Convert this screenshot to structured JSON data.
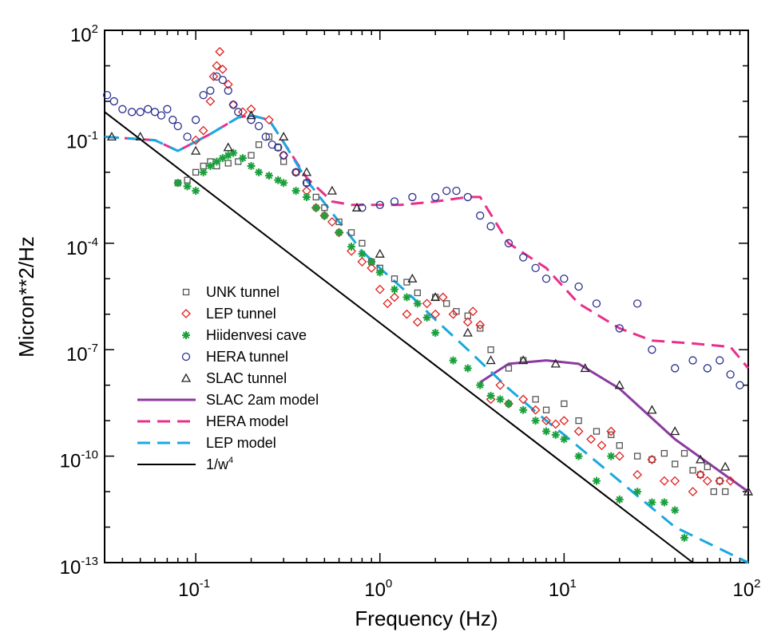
{
  "chart_data": {
    "type": "scatter",
    "xlabel": "Frequency  (Hz)",
    "ylabel": "Micron**2/Hz",
    "x_scale": "log",
    "y_scale": "log",
    "xlim": [
      0.032,
      100
    ],
    "ylim": [
      1e-13,
      100
    ],
    "x_ticks": [
      {
        "base": "10",
        "exp": "-1",
        "value": 0.1
      },
      {
        "base": "10",
        "exp": "0",
        "value": 1
      },
      {
        "base": "10",
        "exp": "1",
        "value": 10
      },
      {
        "base": "10",
        "exp": "2",
        "value": 100
      }
    ],
    "y_ticks": [
      {
        "base": "10",
        "exp": "2",
        "value": 100
      },
      {
        "base": "10",
        "exp": "-1",
        "value": 0.1
      },
      {
        "base": "10",
        "exp": "-4",
        "value": 0.0001
      },
      {
        "base": "10",
        "exp": "-7",
        "value": 1e-07
      },
      {
        "base": "10",
        "exp": "-10",
        "value": 1e-10
      },
      {
        "base": "10",
        "exp": "-13",
        "value": 1e-13
      }
    ],
    "grid": false,
    "legend_position": "lower-left",
    "legend": [
      {
        "label": "UNK tunnel",
        "type": "marker",
        "marker": "square",
        "color": "#555555"
      },
      {
        "label": "LEP tunnel",
        "type": "marker",
        "marker": "diamond",
        "color": "#e0201e"
      },
      {
        "label": "Hiidenvesi cave",
        "type": "marker",
        "marker": "star",
        "color": "#1aa03c"
      },
      {
        "label": "HERA tunnel",
        "type": "marker",
        "marker": "circle",
        "color": "#2a3090"
      },
      {
        "label": "SLAC tunnel",
        "type": "marker",
        "marker": "triangle",
        "color": "#222222"
      },
      {
        "label": "SLAC 2am model",
        "type": "line",
        "style": "solid",
        "color": "#8b3aa0"
      },
      {
        "label": "HERA model",
        "type": "line",
        "style": "dashed",
        "color": "#e8308a"
      },
      {
        "label": "LEP model",
        "type": "line",
        "style": "dashed",
        "color": "#19a8e0"
      },
      {
        "label": "1/w",
        "label_sup": "4",
        "type": "line",
        "style": "solid",
        "color": "#000000"
      }
    ],
    "lines": [
      {
        "name": "SLAC 2am model",
        "color": "#8b3aa0",
        "dash": "",
        "width": 3,
        "x": [
          3.5,
          5,
          8,
          12,
          20,
          40,
          100
        ],
        "y": [
          1.2e-08,
          4e-08,
          5e-08,
          4e-08,
          8e-09,
          3e-10,
          1e-11
        ]
      },
      {
        "name": "HERA model",
        "color": "#e8308a",
        "dash": "16 9",
        "width": 3,
        "x": [
          0.03,
          0.06,
          0.08,
          0.12,
          0.17,
          0.2,
          0.25,
          0.3,
          0.4,
          0.55,
          0.7,
          0.85,
          1.3,
          2,
          3,
          3.5,
          5,
          8,
          12,
          20,
          30,
          50,
          80,
          100
        ],
        "y": [
          0.1,
          0.08,
          0.04,
          0.12,
          0.35,
          0.4,
          0.3,
          0.07,
          0.007,
          0.0015,
          0.0012,
          0.0012,
          0.0012,
          0.0015,
          0.002,
          0.002,
          0.0001,
          2e-05,
          2e-06,
          4e-07,
          1.8e-07,
          1.5e-07,
          1.2e-07,
          3e-08
        ]
      },
      {
        "name": "LEP model",
        "color": "#19a8e0",
        "dash": "18 10",
        "width": 3,
        "x": [
          0.03,
          0.06,
          0.08,
          0.12,
          0.17,
          0.2,
          0.25,
          0.3,
          0.4,
          0.6,
          0.8,
          1,
          1.5,
          2,
          3,
          5,
          8,
          10,
          20,
          40,
          100
        ],
        "y": [
          0.1,
          0.08,
          0.04,
          0.12,
          0.35,
          0.4,
          0.3,
          0.07,
          0.006,
          0.0004,
          6e-05,
          2e-05,
          3e-06,
          7e-07,
          1e-07,
          8e-09,
          1e-09,
          4e-10,
          2e-11,
          1e-12,
          1e-13
        ]
      },
      {
        "name": "1/w^4",
        "color": "#000000",
        "dash": "",
        "width": 2,
        "x": [
          0.032,
          50
        ],
        "y": [
          0.5,
          1e-13
        ]
      }
    ],
    "series": [
      {
        "name": "UNK tunnel",
        "marker": "square",
        "color": "#555555",
        "x": [
          0.08,
          0.09,
          0.1,
          0.11,
          0.12,
          0.13,
          0.15,
          0.17,
          0.2,
          0.22,
          0.25,
          0.28,
          0.3,
          0.35,
          0.4,
          0.45,
          0.5,
          0.6,
          0.7,
          0.8,
          0.9,
          1,
          1.2,
          1.4,
          1.6,
          2,
          2.3,
          2.6,
          3,
          3.5,
          4,
          5,
          6,
          7,
          8,
          10,
          12,
          15,
          18,
          20,
          25,
          30,
          35,
          40,
          45,
          50,
          55,
          60,
          65,
          70,
          75
        ],
        "y": [
          0.005,
          0.006,
          0.01,
          0.015,
          0.02,
          0.015,
          0.018,
          0.02,
          0.03,
          0.06,
          0.1,
          0.05,
          0.02,
          0.01,
          0.005,
          0.002,
          0.001,
          0.0004,
          0.0002,
          0.0001,
          3e-05,
          2e-05,
          1e-05,
          8e-06,
          4e-06,
          3e-06,
          2e-06,
          1.2e-06,
          9e-07,
          4e-07,
          1e-07,
          3e-08,
          5e-08,
          4e-09,
          2e-09,
          3e-09,
          1e-09,
          5e-10,
          4e-10,
          2e-10,
          1e-10,
          8e-11,
          1.2e-10,
          6e-11,
          1.2e-10,
          4e-11,
          3e-11,
          5e-11,
          1e-11,
          2e-11,
          1e-11
        ]
      },
      {
        "name": "LEP tunnel",
        "marker": "diamond",
        "color": "#e0201e",
        "x": [
          0.1,
          0.11,
          0.12,
          0.125,
          0.13,
          0.135,
          0.14,
          0.15,
          0.16,
          0.18,
          0.2,
          0.25,
          0.3,
          0.35,
          0.4,
          0.45,
          0.5,
          0.55,
          0.6,
          0.7,
          0.8,
          0.9,
          1,
          1.1,
          1.2,
          1.4,
          1.6,
          1.8,
          2,
          2.2,
          2.5,
          3,
          3.2,
          3.5,
          4,
          4.5,
          5,
          6,
          7,
          8,
          9,
          10,
          12,
          14,
          16,
          18,
          20,
          25,
          30,
          35,
          40,
          50,
          55,
          60,
          70,
          80
        ],
        "y": [
          0.08,
          0.15,
          1,
          5,
          10,
          25,
          8,
          3,
          0.8,
          0.5,
          0.6,
          0.3,
          0.03,
          0.01,
          0.003,
          0.001,
          0.0006,
          0.0004,
          0.0002,
          6e-05,
          3e-05,
          2e-05,
          5e-06,
          2e-06,
          3e-06,
          1e-06,
          6e-07,
          2e-06,
          1e-06,
          3e-06,
          1e-06,
          6e-07,
          1.2e-06,
          5e-07,
          4e-09,
          1e-08,
          3e-09,
          4e-09,
          2e-09,
          1e-09,
          8e-10,
          1e-09,
          5e-10,
          3e-10,
          2e-10,
          5e-10,
          1e-10,
          3e-11,
          8e-11,
          2e-11,
          2e-11,
          1e-11,
          3e-11,
          2e-11,
          2e-11,
          2e-11
        ]
      },
      {
        "name": "Hiidenvesi cave",
        "marker": "star",
        "color": "#1aa03c",
        "x": [
          0.08,
          0.09,
          0.1,
          0.11,
          0.12,
          0.13,
          0.14,
          0.15,
          0.16,
          0.18,
          0.2,
          0.22,
          0.25,
          0.28,
          0.3,
          0.35,
          0.4,
          0.45,
          0.5,
          0.6,
          0.7,
          0.8,
          0.9,
          1,
          1.2,
          1.4,
          1.6,
          1.8,
          2,
          2.5,
          3,
          3.5,
          4,
          4.5,
          5,
          6,
          7,
          8,
          9,
          10,
          12,
          15,
          18,
          20,
          25,
          30,
          35,
          40,
          45
        ],
        "y": [
          0.005,
          0.004,
          0.003,
          0.01,
          0.015,
          0.02,
          0.025,
          0.03,
          0.035,
          0.025,
          0.015,
          0.01,
          0.008,
          0.006,
          0.005,
          0.003,
          0.002,
          0.001,
          0.0006,
          0.0002,
          8e-05,
          5e-05,
          3e-05,
          1.5e-05,
          5e-06,
          3e-06,
          2e-06,
          8e-07,
          3e-07,
          5e-08,
          3e-08,
          1e-08,
          5e-09,
          4e-09,
          3e-09,
          2e-09,
          1e-09,
          5e-10,
          4e-10,
          3e-10,
          1e-10,
          2e-11,
          1e-10,
          6e-12,
          1e-11,
          5e-12,
          5e-12,
          3e-12,
          5e-13
        ]
      },
      {
        "name": "HERA tunnel",
        "marker": "circle",
        "color": "#2a3090",
        "x": [
          0.033,
          0.036,
          0.04,
          0.045,
          0.05,
          0.055,
          0.06,
          0.065,
          0.07,
          0.075,
          0.08,
          0.09,
          0.1,
          0.11,
          0.12,
          0.13,
          0.14,
          0.15,
          0.16,
          0.17,
          0.2,
          0.22,
          0.24,
          0.26,
          0.28,
          0.3,
          0.35,
          0.4,
          0.8,
          1,
          1.2,
          1.5,
          2,
          2.3,
          2.6,
          3,
          3.5,
          4,
          5,
          6,
          7,
          8,
          10,
          12,
          15,
          20,
          25,
          30,
          40,
          50,
          60,
          70,
          80,
          90
        ],
        "y": [
          1.5,
          1,
          0.6,
          0.5,
          0.5,
          0.6,
          0.5,
          0.4,
          0.6,
          0.3,
          0.2,
          0.1,
          0.3,
          1.5,
          2,
          5,
          4,
          2,
          0.8,
          0.5,
          0.3,
          0.2,
          0.1,
          0.06,
          0.05,
          0.03,
          0.01,
          0.005,
          0.001,
          0.0012,
          0.0015,
          0.002,
          0.002,
          0.003,
          0.003,
          0.002,
          0.0006,
          0.0003,
          0.0001,
          4e-05,
          2e-05,
          1e-05,
          1e-05,
          6e-06,
          2e-06,
          4e-07,
          2e-06,
          1e-07,
          3e-08,
          5e-08,
          3e-08,
          5e-08,
          2e-08,
          1e-08
        ]
      },
      {
        "name": "SLAC tunnel",
        "marker": "triangle",
        "color": "#222222",
        "x": [
          0.035,
          0.05,
          0.1,
          0.15,
          0.2,
          0.3,
          0.4,
          0.55,
          0.75,
          1,
          1.5,
          2,
          3,
          4,
          6,
          9,
          13,
          20,
          30,
          40,
          55,
          75,
          100
        ],
        "y": [
          0.1,
          0.1,
          0.04,
          0.05,
          0.4,
          0.1,
          0.01,
          0.003,
          0.001,
          5e-05,
          1e-05,
          3e-06,
          3e-07,
          5e-08,
          5e-08,
          4e-08,
          3e-08,
          1e-08,
          2e-09,
          5e-10,
          8e-11,
          5e-11,
          1e-11
        ]
      }
    ]
  }
}
